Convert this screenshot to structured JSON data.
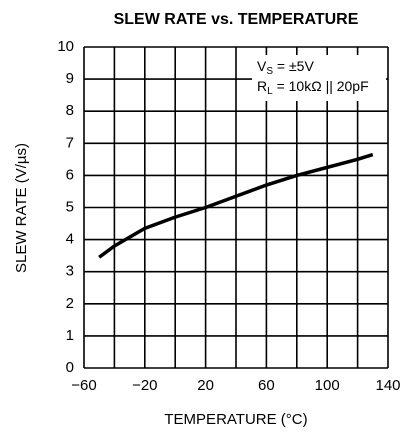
{
  "chart_data": {
    "type": "line",
    "title": "SLEW RATE vs. TEMPERATURE",
    "xlabel": "TEMPERATURE (°C)",
    "ylabel": "SLEW RATE (V/µs)",
    "annotations": [
      {
        "main": "V",
        "sub": "S",
        "rest": " = ±5V"
      },
      {
        "main": "R",
        "sub": "L",
        "rest": " = 10kΩ || 20pF"
      }
    ],
    "x": [
      -50,
      -40,
      -20,
      0,
      20,
      40,
      60,
      80,
      100,
      120,
      130
    ],
    "series": [
      {
        "color": "#000000",
        "values": [
          3.45,
          3.8,
          4.35,
          4.7,
          5.0,
          5.35,
          5.7,
          6.0,
          6.25,
          6.5,
          6.65
        ]
      }
    ],
    "xlim": [
      -60,
      140
    ],
    "xticks": [
      {
        "value": -60,
        "label": "−60"
      },
      {
        "value": -20,
        "label": "−20"
      },
      20,
      60,
      100,
      140
    ],
    "ylim": [
      0,
      10
    ],
    "yticks": [
      0,
      1,
      2,
      3,
      4,
      5,
      6,
      7,
      8,
      9,
      10
    ],
    "grid": true
  }
}
